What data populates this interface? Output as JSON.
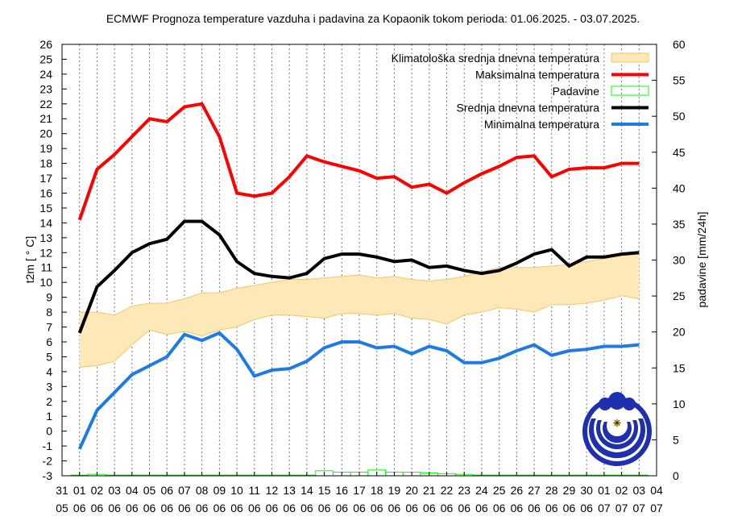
{
  "chart_data": {
    "type": "line",
    "title": "ECMWF Prognoza temperature vazduha i padavina za Kopaonik tokom perioda: 01.06.2025. - 03.07.2025.",
    "ylabel": "t2m [ ° C]",
    "y2label": "padavine [mm/24h]",
    "ylim": [
      -3,
      26
    ],
    "y2lim": [
      0,
      60
    ],
    "y2ticks": [
      0,
      5,
      10,
      15,
      20,
      25,
      30,
      35,
      40,
      45,
      50,
      55,
      60
    ],
    "x_day_labels": [
      "31",
      "01",
      "02",
      "03",
      "04",
      "05",
      "06",
      "07",
      "08",
      "09",
      "10",
      "11",
      "12",
      "13",
      "14",
      "15",
      "16",
      "17",
      "18",
      "19",
      "20",
      "21",
      "22",
      "23",
      "24",
      "25",
      "26",
      "27",
      "28",
      "29",
      "30",
      "01",
      "02",
      "03",
      "04"
    ],
    "x_month_labels": [
      "05",
      "06",
      "06",
      "06",
      "06",
      "06",
      "06",
      "06",
      "06",
      "06",
      "06",
      "06",
      "06",
      "06",
      "06",
      "06",
      "06",
      "06",
      "06",
      "06",
      "06",
      "06",
      "06",
      "06",
      "06",
      "06",
      "06",
      "06",
      "06",
      "06",
      "06",
      "07",
      "07",
      "07",
      "07"
    ],
    "legend": [
      {
        "label": "Klimatološka srednja dnevna temperatura",
        "color": "#fde8b8",
        "kind": "band"
      },
      {
        "label": "Maksimalna temperatura",
        "color": "#ff0000",
        "kind": "line"
      },
      {
        "label": "Padavine",
        "color": "#00ff00",
        "kind": "box"
      },
      {
        "label": "Srednja dnevna temperatura",
        "color": "#000000",
        "kind": "line"
      },
      {
        "label": "Minimalna temperatura",
        "color": "#1e7be6",
        "kind": "line"
      }
    ],
    "legend_position": "top-right",
    "x": [
      1,
      2,
      3,
      4,
      5,
      6,
      7,
      8,
      9,
      10,
      11,
      12,
      13,
      14,
      15,
      16,
      17,
      18,
      19,
      20,
      21,
      22,
      23,
      24,
      25,
      26,
      27,
      28,
      29,
      30,
      31,
      32,
      33
    ],
    "series": [
      {
        "name": "Maksimalna temperatura",
        "color": "#ff0000",
        "values": [
          14.2,
          17.6,
          18.6,
          19.8,
          21.0,
          20.8,
          21.8,
          22.0,
          19.8,
          16.0,
          15.8,
          16.0,
          17.1,
          18.5,
          18.1,
          17.8,
          17.5,
          17.0,
          17.1,
          16.4,
          16.6,
          16.0,
          16.7,
          17.3,
          17.8,
          18.4,
          18.5,
          17.1,
          17.6,
          17.7,
          17.7,
          18.0,
          18.0
        ]
      },
      {
        "name": "Srednja dnevna temperatura",
        "color": "#000000",
        "values": [
          6.6,
          9.7,
          10.8,
          12.0,
          12.6,
          12.9,
          14.1,
          14.1,
          13.2,
          11.4,
          10.6,
          10.4,
          10.3,
          10.6,
          11.6,
          11.9,
          11.9,
          11.7,
          11.4,
          11.5,
          11.0,
          11.1,
          10.8,
          10.6,
          10.8,
          11.3,
          11.9,
          12.2,
          11.1,
          11.7,
          11.7,
          11.9,
          12.0
        ]
      },
      {
        "name": "Minimalna temperatura",
        "color": "#1e7be6",
        "values": [
          -1.2,
          1.4,
          2.6,
          3.8,
          4.4,
          5.0,
          6.5,
          6.1,
          6.6,
          5.5,
          3.7,
          4.1,
          4.2,
          4.7,
          5.6,
          6.0,
          6.0,
          5.6,
          5.7,
          5.2,
          5.7,
          5.4,
          4.6,
          4.6,
          4.9,
          5.4,
          5.8,
          5.1,
          5.4,
          5.5,
          5.7,
          5.7,
          5.8
        ]
      }
    ],
    "climatology_band": {
      "name": "Klimatološka srednja dnevna temperatura",
      "upper": [
        8.0,
        8.0,
        7.8,
        8.4,
        8.6,
        8.6,
        8.9,
        9.3,
        9.3,
        9.6,
        9.8,
        10.0,
        10.2,
        10.2,
        10.3,
        10.4,
        10.5,
        10.3,
        10.4,
        10.2,
        10.1,
        10.2,
        10.4,
        10.7,
        11.0,
        11.0,
        11.0,
        11.1,
        11.2,
        11.4,
        11.6,
        11.8,
        11.9
      ],
      "lower": [
        4.3,
        4.4,
        4.7,
        5.8,
        6.8,
        6.5,
        6.7,
        6.4,
        6.8,
        7.0,
        7.5,
        7.8,
        7.8,
        7.7,
        7.6,
        7.9,
        7.9,
        7.8,
        7.9,
        7.6,
        7.5,
        7.2,
        7.8,
        8.0,
        8.3,
        8.2,
        8.0,
        8.5,
        8.5,
        8.6,
        8.8,
        9.1,
        8.9
      ]
    },
    "precipitation": {
      "name": "Padavine",
      "color": "#00ff00",
      "unit": "mm/24h",
      "values": [
        0.1,
        0.2,
        0.1,
        0.1,
        0.1,
        0.1,
        0.1,
        0.1,
        0.1,
        0.1,
        0.1,
        0.1,
        0.1,
        0.1,
        0.7,
        0.5,
        0.5,
        0.8,
        0.5,
        0.5,
        0.4,
        0.3,
        0.2,
        0.1,
        0.1,
        0.1,
        0.1,
        0.1,
        0.1,
        0.1,
        0.1,
        0.1,
        0.1
      ]
    }
  }
}
